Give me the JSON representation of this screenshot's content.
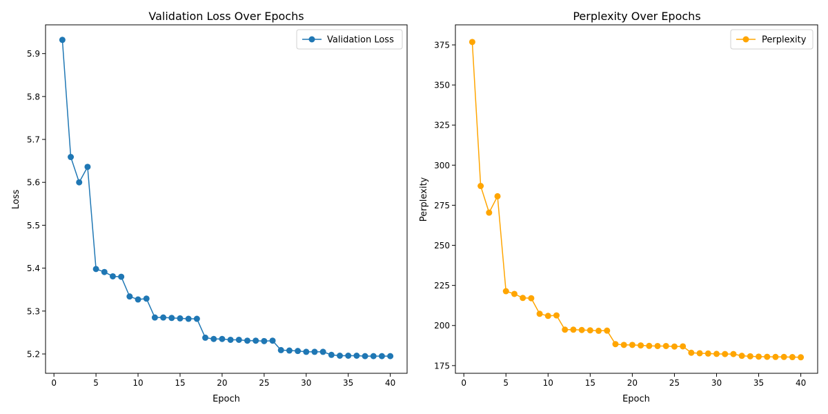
{
  "charts": [
    {
      "title": "Validation Loss Over Epochs",
      "xlabel": "Epoch",
      "ylabel": "Loss",
      "legend_label": "Validation Loss",
      "color": "#1f77b4"
    },
    {
      "title": "Perplexity Over Epochs",
      "xlabel": "Epoch",
      "ylabel": "Perplexity",
      "legend_label": "Perplexity",
      "color": "#ffa500"
    }
  ],
  "chart_data": [
    {
      "type": "line",
      "title": "Validation Loss Over Epochs",
      "xlabel": "Epoch",
      "ylabel": "Loss",
      "legend": "top-right",
      "grid": false,
      "xlim": [
        -1,
        42
      ],
      "ylim": [
        5.155,
        5.967
      ],
      "xticks": [
        0,
        5,
        10,
        15,
        20,
        25,
        30,
        35,
        40
      ],
      "yticks": [
        5.2,
        5.3,
        5.4,
        5.5,
        5.6,
        5.7,
        5.8,
        5.9
      ],
      "ytick_labels": [
        "5.2",
        "5.3",
        "5.4",
        "5.5",
        "5.6",
        "5.7",
        "5.8",
        "5.9"
      ],
      "series": [
        {
          "name": "Validation Loss",
          "color": "#1f77b4",
          "x": [
            1,
            2,
            3,
            4,
            5,
            6,
            7,
            8,
            9,
            10,
            11,
            12,
            13,
            14,
            15,
            16,
            17,
            18,
            19,
            20,
            21,
            22,
            23,
            24,
            25,
            26,
            27,
            28,
            29,
            30,
            31,
            32,
            33,
            34,
            35,
            36,
            37,
            38,
            39,
            40
          ],
          "y": [
            5.932,
            5.659,
            5.6,
            5.636,
            5.398,
            5.391,
            5.381,
            5.38,
            5.334,
            5.327,
            5.329,
            5.285,
            5.285,
            5.284,
            5.283,
            5.282,
            5.282,
            5.238,
            5.235,
            5.235,
            5.233,
            5.233,
            5.231,
            5.231,
            5.23,
            5.231,
            5.209,
            5.208,
            5.207,
            5.205,
            5.205,
            5.205,
            5.198,
            5.196,
            5.196,
            5.196,
            5.195,
            5.195,
            5.195,
            5.195
          ]
        }
      ]
    },
    {
      "type": "line",
      "title": "Perplexity Over Epochs",
      "xlabel": "Epoch",
      "ylabel": "Perplexity",
      "legend": "top-right",
      "grid": false,
      "xlim": [
        -1,
        42
      ],
      "ylim": [
        170.2,
        387.5
      ],
      "xticks": [
        0,
        5,
        10,
        15,
        20,
        25,
        30,
        35,
        40
      ],
      "yticks": [
        175,
        200,
        225,
        250,
        275,
        300,
        325,
        350,
        375
      ],
      "ytick_labels": [
        "175",
        "200",
        "225",
        "250",
        "275",
        "300",
        "325",
        "350",
        "375"
      ],
      "series": [
        {
          "name": "Perplexity",
          "color": "#ffa500",
          "x": [
            1,
            2,
            3,
            4,
            5,
            6,
            7,
            8,
            9,
            10,
            11,
            12,
            13,
            14,
            15,
            16,
            17,
            18,
            19,
            20,
            21,
            22,
            23,
            24,
            25,
            26,
            27,
            28,
            29,
            30,
            31,
            32,
            33,
            34,
            35,
            36,
            37,
            38,
            39,
            40
          ],
          "y": [
            376.8,
            287.0,
            270.4,
            280.6,
            221.4,
            219.7,
            217.2,
            217.0,
            207.3,
            206.0,
            206.3,
            197.4,
            197.4,
            197.2,
            197.0,
            196.7,
            196.8,
            188.4,
            187.9,
            187.9,
            187.6,
            187.3,
            187.2,
            187.2,
            186.9,
            187.0,
            183.0,
            182.7,
            182.5,
            182.3,
            182.2,
            182.2,
            181.1,
            180.8,
            180.6,
            180.5,
            180.4,
            180.4,
            180.3,
            180.2
          ]
        }
      ]
    }
  ]
}
